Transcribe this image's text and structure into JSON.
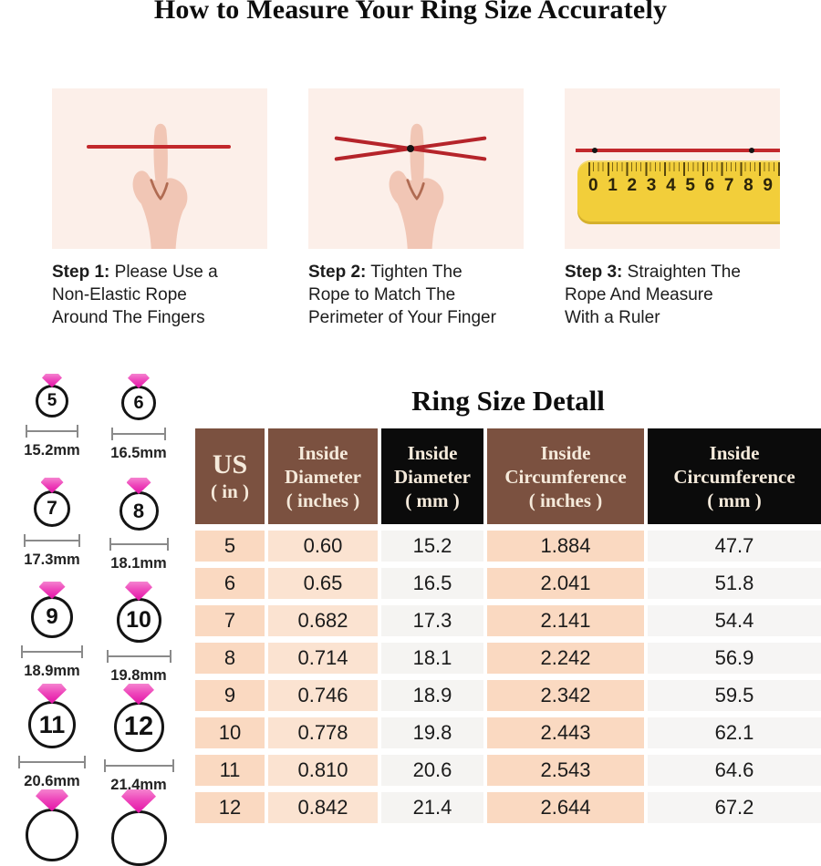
{
  "page": {
    "title": "How to Measure Your Ring Size Accurately"
  },
  "steps": [
    {
      "label": "Step 1:",
      "text": "Please Use a\nNon-Elastic Rope\nAround The Fingers",
      "illustration": "hand-with-straight-rope"
    },
    {
      "label": "Step 2:",
      "text": "Tighten The\nRope to Match The\nPerimeter of Your Finger",
      "illustration": "hand-with-crossed-rope"
    },
    {
      "label": "Step 3:",
      "text": "Straighten The\nRope And Measure\nWith a Ruler",
      "illustration": "rope-on-ruler"
    }
  ],
  "ruler": {
    "numbers": [
      "0",
      "1",
      "2",
      "3",
      "4",
      "5",
      "6",
      "7",
      "8",
      "9"
    ]
  },
  "size_chart": {
    "title": "Ring Size Detall",
    "columns": [
      {
        "lines": [
          "US",
          "( in )"
        ],
        "theme": "brown"
      },
      {
        "lines": [
          "Inside",
          "Diameter",
          "( inches )"
        ],
        "theme": "brown"
      },
      {
        "lines": [
          "Inside",
          "Diameter",
          "( mm )"
        ],
        "theme": "black"
      },
      {
        "lines": [
          "Inside",
          "Circumference",
          "( inches )"
        ],
        "theme": "brown"
      },
      {
        "lines": [
          "Inside",
          "Circumference",
          "( mm )"
        ],
        "theme": "black"
      }
    ],
    "rows": [
      [
        "5",
        "0.60",
        "15.2",
        "1.884",
        "47.7"
      ],
      [
        "6",
        "0.65",
        "16.5",
        "2.041",
        "51.8"
      ],
      [
        "7",
        "0.682",
        "17.3",
        "2.141",
        "54.4"
      ],
      [
        "8",
        "0.714",
        "18.1",
        "2.242",
        "56.9"
      ],
      [
        "9",
        "0.746",
        "18.9",
        "2.342",
        "59.5"
      ],
      [
        "10",
        "0.778",
        "19.8",
        "2.443",
        "62.1"
      ],
      [
        "11",
        "0.810",
        "20.6",
        "2.543",
        "64.6"
      ],
      [
        "12",
        "0.842",
        "21.4",
        "2.644",
        "67.2"
      ]
    ]
  },
  "ring_gallery": {
    "items": [
      {
        "size": "5",
        "label": "15.2mm"
      },
      {
        "size": "6",
        "label": "16.5mm"
      },
      {
        "size": "7",
        "label": "17.3mm"
      },
      {
        "size": "8",
        "label": "18.1mm"
      },
      {
        "size": "9",
        "label": "18.9mm"
      },
      {
        "size": "10",
        "label": "19.8mm"
      },
      {
        "size": "11",
        "label": "20.6mm"
      },
      {
        "size": "12",
        "label": "21.4mm"
      },
      {
        "size": "",
        "label": ""
      },
      {
        "size": "",
        "label": ""
      }
    ]
  },
  "colors": {
    "rope_red": "#c2282c",
    "ruler_yellow": "#f2ce3a",
    "header_brown": "#7b5140",
    "header_black": "#0b0b0b",
    "header_text": "#f5eadb",
    "cell_peach_dark": "#fad9c1",
    "cell_peach_light": "#fbe3d1",
    "cell_gray": "#f5f4f2",
    "gem_pink": "#e312a6",
    "panel_bg": "#fcefe9"
  }
}
